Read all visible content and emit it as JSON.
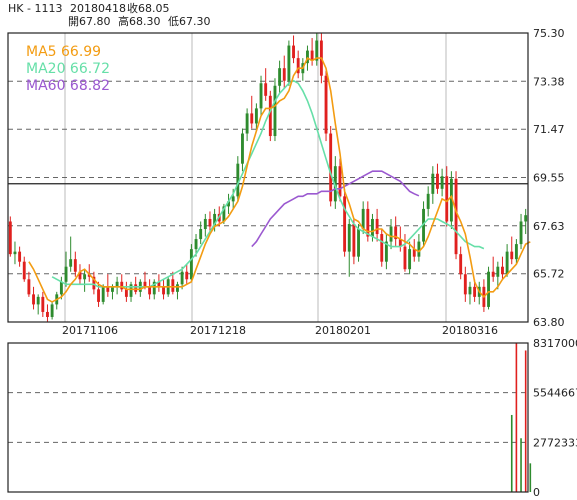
{
  "header": {
    "symbol": "HK - 1113",
    "date": "20180418",
    "close_label": "收68.05",
    "open_label": "開67.80",
    "high_label": "高68.30",
    "low_label": "低67.30"
  },
  "colors": {
    "up": "#2e8b2e",
    "down": "#e0201e",
    "ma5": "#f39c12",
    "ma20": "#66dfa8",
    "ma60": "#9b59d0",
    "frame": "#222222",
    "grid_dashed": "#666666",
    "grid_vertical": "#bbbbbb",
    "highlight_line": "#222222"
  },
  "chart_data": [
    {
      "type": "candlestick",
      "title": "HK - 1113",
      "x_ticks": [
        "20171106",
        "20171218",
        "20180201",
        "20180316"
      ],
      "ylim": [
        63.8,
        75.3
      ],
      "y_ticks": [
        75.3,
        73.38,
        71.47,
        69.55,
        67.63,
        65.72,
        63.8
      ],
      "highlight_price": 69.3,
      "grid": true,
      "legend_position": "top-left",
      "legend": [
        {
          "name": "MA5",
          "value": "66.99",
          "label": "MA5 66.99"
        },
        {
          "name": "MA20",
          "value": "66.72",
          "label": "MA20 66.72"
        },
        {
          "name": "MA60",
          "value": "68.82",
          "label": "MA60 68.82"
        }
      ],
      "candles": [
        [
          67.8,
          68.0,
          66.4,
          66.5
        ],
        [
          66.5,
          67.0,
          66.1,
          66.6
        ],
        [
          66.6,
          66.8,
          66.0,
          66.2
        ],
        [
          66.2,
          66.4,
          65.4,
          65.5
        ],
        [
          65.5,
          65.8,
          64.8,
          64.9
        ],
        [
          64.9,
          65.2,
          64.3,
          64.5
        ],
        [
          64.5,
          64.9,
          64.1,
          64.8
        ],
        [
          64.8,
          65.0,
          64.0,
          64.2
        ],
        [
          64.2,
          64.5,
          63.8,
          64.0
        ],
        [
          64.0,
          64.6,
          63.9,
          64.5
        ],
        [
          64.5,
          65.0,
          64.3,
          64.9
        ],
        [
          64.9,
          65.6,
          64.7,
          65.4
        ],
        [
          65.4,
          66.6,
          65.2,
          66.0
        ],
        [
          66.0,
          67.2,
          65.8,
          66.3
        ],
        [
          66.3,
          66.6,
          65.6,
          65.8
        ],
        [
          65.8,
          66.1,
          65.3,
          65.5
        ],
        [
          65.5,
          65.9,
          65.0,
          65.7
        ],
        [
          65.7,
          66.1,
          65.4,
          65.6
        ],
        [
          65.6,
          65.8,
          64.9,
          65.1
        ],
        [
          65.1,
          65.4,
          64.4,
          64.6
        ],
        [
          64.6,
          65.3,
          64.5,
          65.2
        ],
        [
          65.2,
          65.7,
          64.8,
          65.0
        ],
        [
          65.0,
          65.3,
          64.7,
          65.2
        ],
        [
          65.2,
          65.6,
          64.9,
          65.4
        ],
        [
          65.4,
          65.7,
          65.0,
          65.1
        ],
        [
          65.1,
          65.4,
          64.6,
          64.8
        ],
        [
          64.8,
          65.4,
          64.6,
          65.3
        ],
        [
          65.3,
          65.6,
          64.9,
          65.0
        ],
        [
          65.0,
          65.5,
          64.8,
          65.4
        ],
        [
          65.4,
          65.8,
          65.1,
          65.2
        ],
        [
          65.2,
          65.5,
          64.7,
          64.9
        ],
        [
          64.9,
          65.5,
          64.7,
          65.4
        ],
        [
          65.4,
          65.7,
          65.0,
          65.2
        ],
        [
          65.2,
          65.5,
          64.7,
          64.9
        ],
        [
          64.9,
          65.6,
          64.8,
          65.5
        ],
        [
          65.5,
          65.8,
          64.9,
          65.0
        ],
        [
          65.0,
          65.4,
          64.7,
          65.3
        ],
        [
          65.3,
          66.0,
          65.1,
          65.8
        ],
        [
          65.8,
          66.1,
          65.3,
          65.5
        ],
        [
          65.5,
          66.9,
          65.4,
          66.7
        ],
        [
          66.7,
          67.3,
          66.4,
          67.1
        ],
        [
          67.1,
          67.8,
          66.9,
          67.5
        ],
        [
          67.5,
          68.1,
          67.2,
          67.9
        ],
        [
          67.9,
          68.2,
          67.4,
          67.6
        ],
        [
          67.6,
          68.3,
          67.4,
          68.1
        ],
        [
          68.1,
          68.4,
          67.6,
          67.8
        ],
        [
          67.8,
          68.5,
          67.7,
          68.4
        ],
        [
          68.4,
          68.9,
          68.1,
          68.6
        ],
        [
          68.6,
          69.1,
          68.3,
          68.8
        ],
        [
          68.8,
          70.4,
          68.6,
          70.1
        ],
        [
          70.1,
          71.5,
          69.8,
          71.3
        ],
        [
          71.3,
          72.3,
          71.0,
          72.1
        ],
        [
          72.1,
          72.8,
          71.5,
          71.7
        ],
        [
          71.7,
          72.5,
          71.4,
          72.3
        ],
        [
          72.3,
          73.6,
          72.0,
          73.3
        ],
        [
          73.3,
          73.9,
          72.6,
          72.8
        ],
        [
          72.8,
          73.0,
          71.0,
          71.2
        ],
        [
          71.2,
          73.5,
          71.0,
          73.2
        ],
        [
          73.2,
          74.2,
          72.9,
          73.9
        ],
        [
          73.9,
          74.4,
          73.1,
          73.4
        ],
        [
          73.4,
          75.0,
          73.2,
          74.8
        ],
        [
          74.8,
          75.2,
          74.1,
          74.3
        ],
        [
          74.3,
          74.6,
          73.5,
          73.7
        ],
        [
          73.7,
          74.3,
          73.4,
          74.1
        ],
        [
          74.1,
          74.8,
          73.8,
          74.6
        ],
        [
          74.6,
          75.1,
          74.0,
          74.2
        ],
        [
          74.2,
          75.3,
          74.0,
          75.0
        ],
        [
          75.0,
          75.3,
          73.3,
          73.6
        ],
        [
          73.6,
          73.8,
          71.0,
          71.3
        ],
        [
          71.3,
          71.6,
          68.4,
          68.6
        ],
        [
          68.6,
          70.4,
          68.3,
          70.0
        ],
        [
          70.0,
          70.3,
          68.6,
          68.8
        ],
        [
          68.8,
          69.1,
          66.4,
          66.6
        ],
        [
          66.6,
          67.9,
          65.6,
          67.7
        ],
        [
          67.7,
          67.9,
          66.1,
          66.4
        ],
        [
          66.4,
          67.7,
          66.2,
          67.5
        ],
        [
          67.5,
          68.6,
          67.3,
          68.3
        ],
        [
          68.3,
          68.6,
          67.0,
          67.2
        ],
        [
          67.2,
          68.1,
          67.0,
          67.9
        ],
        [
          67.9,
          68.3,
          67.0,
          67.3
        ],
        [
          67.3,
          67.5,
          66.0,
          66.2
        ],
        [
          66.2,
          67.3,
          65.9,
          67.0
        ],
        [
          67.0,
          67.9,
          66.7,
          67.6
        ],
        [
          67.6,
          68.0,
          66.8,
          67.1
        ],
        [
          67.1,
          67.6,
          66.6,
          66.8
        ],
        [
          66.8,
          67.3,
          65.8,
          65.9
        ],
        [
          65.9,
          67.0,
          65.7,
          66.7
        ],
        [
          66.7,
          67.1,
          66.2,
          66.4
        ],
        [
          66.4,
          67.3,
          66.2,
          67.0
        ],
        [
          67.0,
          68.6,
          66.8,
          68.3
        ],
        [
          68.3,
          69.2,
          68.0,
          68.9
        ],
        [
          68.9,
          70.0,
          68.5,
          69.7
        ],
        [
          69.7,
          70.1,
          68.9,
          69.1
        ],
        [
          69.1,
          69.9,
          68.8,
          69.6
        ],
        [
          69.6,
          70.0,
          67.6,
          67.8
        ],
        [
          67.8,
          69.8,
          67.5,
          69.5
        ],
        [
          69.5,
          69.8,
          66.3,
          66.5
        ],
        [
          66.5,
          66.8,
          65.5,
          65.7
        ],
        [
          65.7,
          66.0,
          64.6,
          64.9
        ],
        [
          64.9,
          65.4,
          64.5,
          65.2
        ],
        [
          65.2,
          65.5,
          64.6,
          64.8
        ],
        [
          64.8,
          65.4,
          64.5,
          65.2
        ],
        [
          65.2,
          65.5,
          64.2,
          64.4
        ],
        [
          64.4,
          66.0,
          64.3,
          65.8
        ],
        [
          65.8,
          66.4,
          65.4,
          65.6
        ],
        [
          65.6,
          66.2,
          65.1,
          66.0
        ],
        [
          66.0,
          66.4,
          65.5,
          65.7
        ],
        [
          65.7,
          66.9,
          65.6,
          66.6
        ],
        [
          66.6,
          67.2,
          66.1,
          66.3
        ],
        [
          66.3,
          67.1,
          66.1,
          66.9
        ],
        [
          66.9,
          68.1,
          66.7,
          67.8
        ],
        [
          67.8,
          68.3,
          67.3,
          68.05
        ]
      ],
      "ma5": [
        null,
        null,
        null,
        null,
        66.2,
        65.9,
        65.5,
        65.1,
        64.7,
        64.6,
        64.7,
        64.8,
        65.0,
        65.3,
        65.5,
        65.8,
        65.9,
        65.7,
        65.5,
        65.3,
        65.2,
        65.2,
        65.2,
        65.2,
        65.2,
        65.1,
        65.1,
        65.1,
        65.1,
        65.2,
        65.2,
        65.2,
        65.2,
        65.2,
        65.2,
        65.2,
        65.2,
        65.2,
        65.3,
        65.4,
        65.9,
        66.4,
        66.9,
        67.3,
        67.6,
        67.7,
        67.8,
        68.0,
        68.3,
        68.6,
        69.2,
        70.0,
        70.8,
        71.4,
        72.0,
        72.3,
        72.3,
        72.4,
        72.6,
        72.7,
        73.0,
        73.6,
        73.9,
        73.9,
        74.3,
        74.2,
        74.3,
        74.3,
        73.9,
        73.0,
        71.7,
        70.5,
        69.0,
        68.5,
        67.9,
        67.8,
        67.5,
        67.4,
        67.4,
        67.5,
        67.5,
        67.3,
        67.2,
        67.2,
        67.1,
        67.0,
        66.9,
        66.7,
        66.6,
        66.8,
        67.2,
        67.7,
        68.2,
        68.7,
        68.6,
        68.8,
        68.2,
        67.8,
        67.3,
        66.4,
        65.4,
        65.0,
        64.8,
        65.0,
        65.0,
        65.2,
        65.5,
        65.7,
        65.9,
        66.1,
        66.5,
        66.9,
        66.99
      ],
      "ma20": [
        null,
        null,
        null,
        null,
        null,
        null,
        null,
        null,
        null,
        65.6,
        65.5,
        65.4,
        65.3,
        65.3,
        65.3,
        65.3,
        65.3,
        65.3,
        65.3,
        65.2,
        65.2,
        65.2,
        65.2,
        65.2,
        65.2,
        65.2,
        65.2,
        65.2,
        65.2,
        65.2,
        65.2,
        65.3,
        65.4,
        65.5,
        65.6,
        65.7,
        65.8,
        65.9,
        66.1,
        66.3,
        66.5,
        66.8,
        67.1,
        67.4,
        67.7,
        68.0,
        68.3,
        68.6,
        68.9,
        69.3,
        69.7,
        70.1,
        70.5,
        70.9,
        71.3,
        71.8,
        72.2,
        72.6,
        72.9,
        73.1,
        73.3,
        73.4,
        73.3,
        73.0,
        72.6,
        72.1,
        71.5,
        70.9,
        70.3,
        69.7,
        69.2,
        68.7,
        68.3,
        68.0,
        67.7,
        67.5,
        67.4,
        67.3,
        67.2,
        67.1,
        67.0,
        66.9,
        66.8,
        66.8,
        66.8,
        66.9,
        67.1,
        67.3,
        67.5,
        67.7,
        67.9,
        67.9,
        67.9,
        67.8,
        67.7,
        67.6,
        67.4,
        67.2,
        67.0,
        66.9,
        66.8,
        66.8,
        66.72
      ],
      "ma60": [
        null,
        null,
        null,
        null,
        null,
        null,
        null,
        null,
        null,
        null,
        null,
        null,
        null,
        null,
        null,
        null,
        null,
        null,
        null,
        null,
        null,
        null,
        null,
        null,
        null,
        null,
        null,
        null,
        null,
        null,
        null,
        null,
        null,
        null,
        null,
        null,
        null,
        null,
        null,
        null,
        null,
        null,
        null,
        null,
        null,
        null,
        null,
        null,
        null,
        null,
        null,
        null,
        66.8,
        67.0,
        67.3,
        67.6,
        67.9,
        68.1,
        68.3,
        68.5,
        68.6,
        68.7,
        68.8,
        68.8,
        68.9,
        68.9,
        68.9,
        69.0,
        69.0,
        69.0,
        69.1,
        69.1,
        69.2,
        69.3,
        69.4,
        69.5,
        69.6,
        69.7,
        69.8,
        69.8,
        69.8,
        69.7,
        69.6,
        69.5,
        69.4,
        69.2,
        69.0,
        68.9,
        68.82
      ],
      "volume": {
        "y_ticks": [
          8317000,
          5544667,
          2772333,
          0
        ],
        "ylim": [
          0,
          8317000
        ],
        "bars": [
          {
            "index": 108,
            "value": 4300000,
            "color": "up"
          },
          {
            "index": 109,
            "value": 8300000,
            "color": "down"
          },
          {
            "index": 110,
            "value": 3000000,
            "color": "up"
          },
          {
            "index": 111,
            "value": 7900000,
            "color": "down"
          },
          {
            "index": 112,
            "value": 1600000,
            "color": "up"
          }
        ]
      }
    }
  ]
}
